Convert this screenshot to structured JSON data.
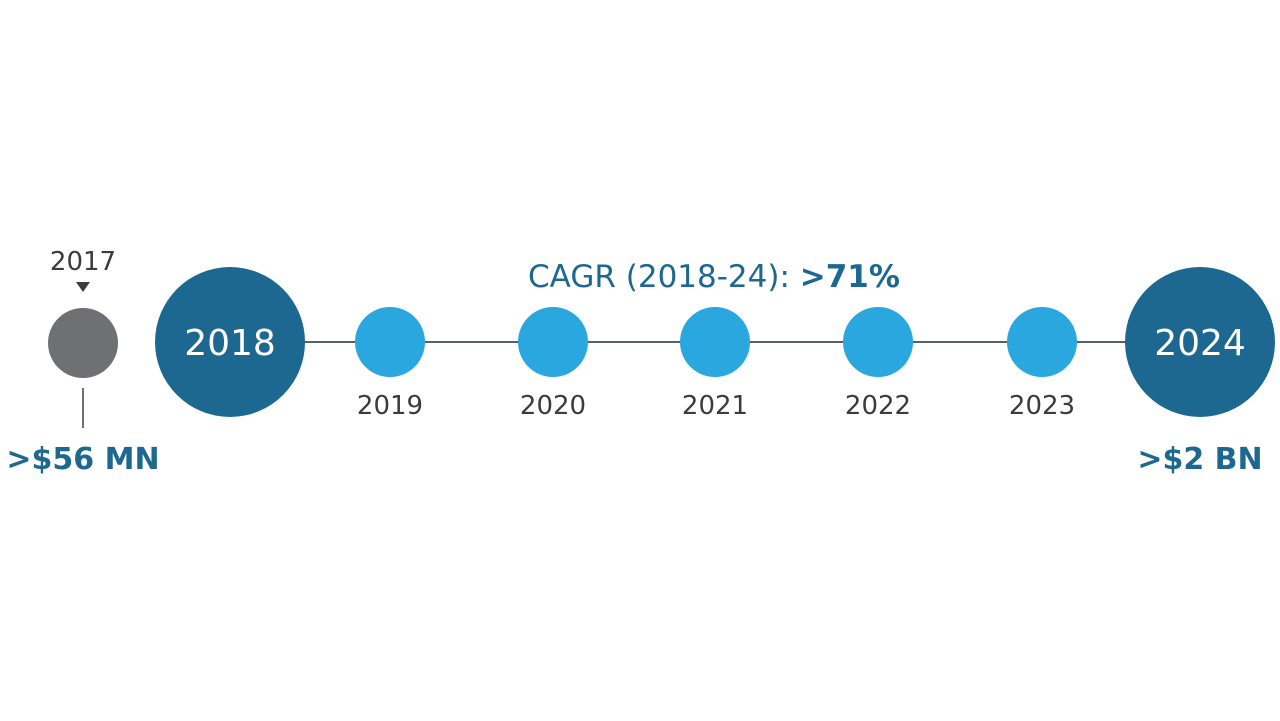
{
  "colors": {
    "background": "#ffffff",
    "line": "#55616d",
    "dark_blue": "#1d6891",
    "light_blue": "#2aa7df",
    "gray": "#6f7073",
    "label_text": "#3c3c3c",
    "emphasis_text": "#1d6891"
  },
  "cagr": {
    "label": "CAGR (2018-24): ",
    "value": ">71%"
  },
  "start": {
    "year": "2017",
    "pointer_icon": "triangle-down-icon",
    "value": ">$56 MN"
  },
  "milestones": [
    {
      "year": "2018",
      "style": "large-dark"
    },
    {
      "year": "2019",
      "style": "small-light"
    },
    {
      "year": "2020",
      "style": "small-light"
    },
    {
      "year": "2021",
      "style": "small-light"
    },
    {
      "year": "2022",
      "style": "small-light"
    },
    {
      "year": "2023",
      "style": "small-light"
    },
    {
      "year": "2024",
      "style": "large-dark"
    }
  ],
  "end": {
    "value": ">$2 BN"
  }
}
